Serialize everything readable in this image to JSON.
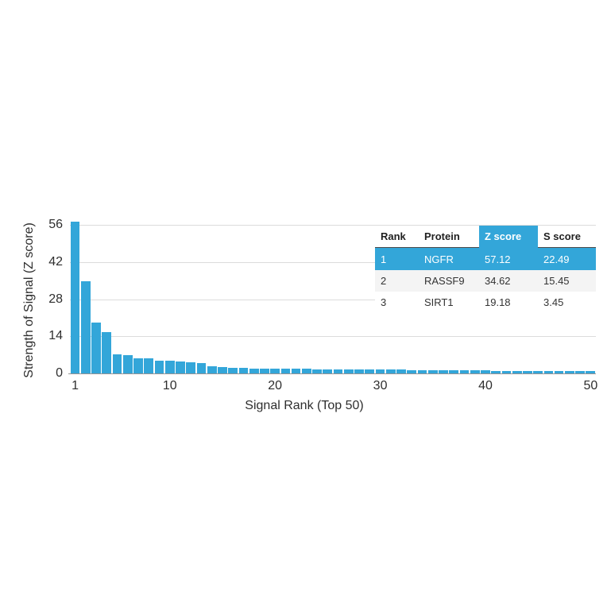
{
  "chart_data": {
    "type": "bar",
    "title": "",
    "xlabel": "Signal Rank (Top 50)",
    "ylabel": "Strength of Signal (Z score)",
    "x_ticks": [
      1,
      10,
      20,
      30,
      40,
      50
    ],
    "y_ticks": [
      0,
      14,
      28,
      42,
      56
    ],
    "xlim": [
      1,
      50
    ],
    "ylim": [
      0,
      57.5
    ],
    "grid": "horizontal",
    "legend": "none",
    "categories_note": "x = signal rank 1 through 50, one bar per rank",
    "values": [
      57.12,
      34.62,
      19.18,
      15.5,
      7.2,
      7.0,
      5.8,
      5.7,
      4.8,
      4.7,
      4.5,
      4.1,
      4.0,
      2.6,
      2.3,
      2.1,
      2.0,
      1.9,
      1.9,
      1.8,
      1.8,
      1.7,
      1.7,
      1.6,
      1.6,
      1.6,
      1.5,
      1.5,
      1.5,
      1.4,
      1.4,
      1.4,
      1.3,
      1.3,
      1.3,
      1.2,
      1.2,
      1.1,
      1.1,
      1.1,
      1.0,
      1.0,
      1.0,
      1.0,
      0.9,
      0.9,
      0.9,
      0.9,
      0.9,
      0.9
    ]
  },
  "table": {
    "headers": [
      "Rank",
      "Protein",
      "Z score",
      "S score"
    ],
    "highlighted_column": "Z score",
    "rows": [
      {
        "rank": "1",
        "protein": "NGFR",
        "z": "57.12",
        "s": "22.49"
      },
      {
        "rank": "2",
        "protein": "RASSF9",
        "z": "34.62",
        "s": "15.45"
      },
      {
        "rank": "3",
        "protein": "SIRT1",
        "z": "19.18",
        "s": "3.45"
      }
    ]
  },
  "colors": {
    "bar": "#33a6d9",
    "highlight_row": "#33a6d9",
    "grid": "#dcdcdc",
    "axis_line": "#949494",
    "alt_row_bg": "#f4f4f4",
    "header_border": "#4a4a4a",
    "text": "#2e2e2e",
    "background": "#ffffff"
  }
}
